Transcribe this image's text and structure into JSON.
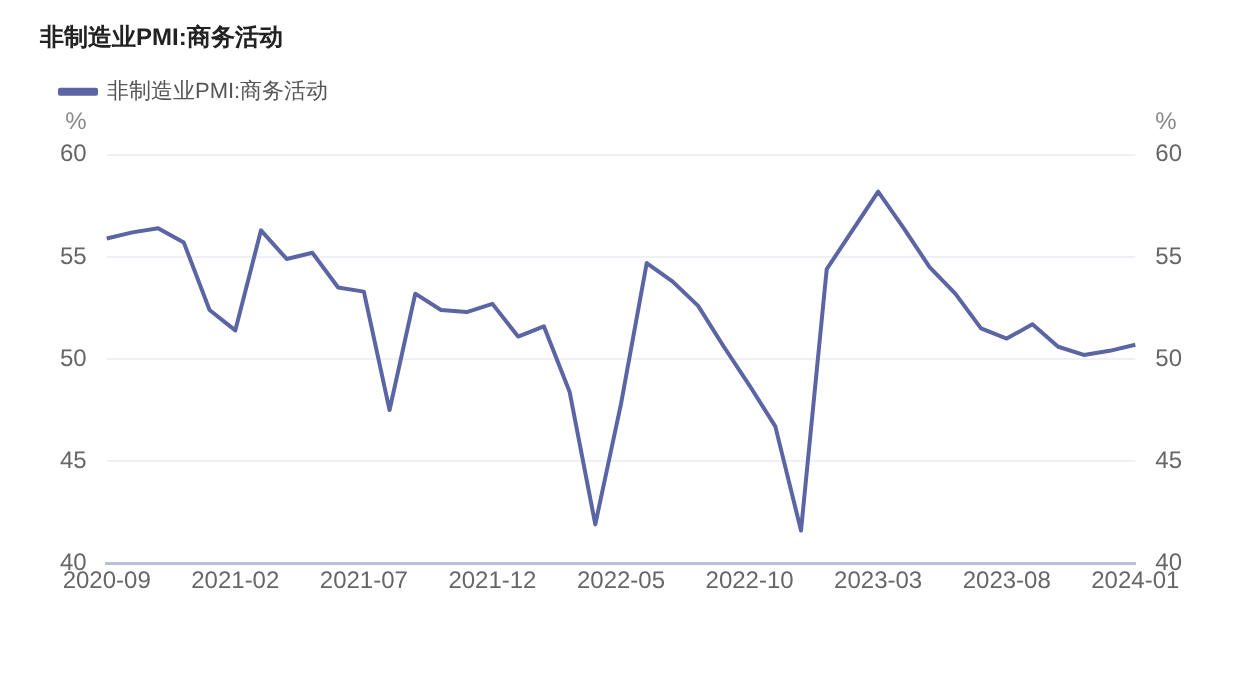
{
  "chart_data": {
    "type": "line",
    "title": "非制造业PMI:商务活动",
    "categories": [
      "2020-09",
      null,
      null,
      null,
      null,
      "2021-02",
      null,
      null,
      null,
      null,
      "2021-07",
      null,
      null,
      null,
      null,
      "2021-12",
      null,
      null,
      null,
      null,
      "2022-05",
      null,
      null,
      null,
      null,
      "2022-10",
      null,
      null,
      null,
      null,
      "2023-03",
      null,
      null,
      null,
      null,
      "2023-08",
      null,
      null,
      null,
      null,
      "2024-01"
    ],
    "series": [
      {
        "name": "非制造业PMI:商务活动",
        "color": "#5b65a3",
        "values": [
          55.9,
          56.2,
          56.4,
          55.7,
          52.4,
          51.4,
          56.3,
          54.9,
          55.2,
          53.5,
          53.3,
          47.5,
          53.2,
          52.4,
          52.3,
          52.7,
          51.1,
          51.6,
          48.4,
          41.9,
          47.8,
          54.7,
          53.8,
          52.6,
          50.6,
          48.7,
          46.7,
          41.6,
          54.4,
          56.3,
          58.2,
          56.4,
          54.5,
          53.2,
          51.5,
          51.0,
          51.7,
          50.6,
          50.2,
          50.4,
          50.7
        ]
      }
    ],
    "ylabel": "%",
    "y2label": "%",
    "ylim": [
      40,
      60
    ],
    "yticks": [
      40,
      45,
      50,
      55,
      60
    ],
    "y2lim": [
      40,
      60
    ],
    "y2ticks": [
      40,
      45,
      50,
      55,
      60
    ],
    "grid": "y",
    "legend": "top left",
    "marker": "none",
    "line_style": "solid"
  }
}
